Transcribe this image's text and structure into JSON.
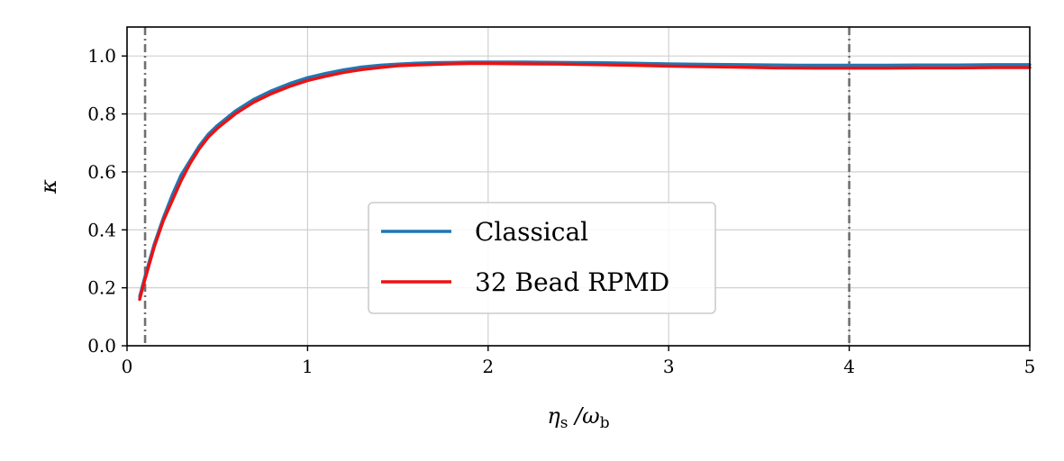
{
  "chart_data": {
    "type": "line",
    "xlabel": "η_s / ω_b",
    "xlabel_main": "η",
    "xlabel_sub1": "s",
    "xlabel_mid": " /ω",
    "xlabel_sub2": "b",
    "ylabel": "κ",
    "xlim": [
      0,
      5
    ],
    "ylim": [
      0,
      1.1
    ],
    "xticks": [
      0,
      1,
      2,
      3,
      4,
      5
    ],
    "xtick_labels": [
      "0",
      "1",
      "2",
      "3",
      "4",
      "5"
    ],
    "yticks": [
      0.0,
      0.2,
      0.4,
      0.6,
      0.8,
      1.0
    ],
    "ytick_labels": [
      "0.0",
      "0.2",
      "0.4",
      "0.6",
      "0.8",
      "1.0"
    ],
    "grid": true,
    "legend_position": "center",
    "vlines": [
      0.1,
      4.0
    ],
    "series": [
      {
        "name": "Classical",
        "color": "#1f77b4",
        "x": [
          0.07,
          0.1,
          0.15,
          0.2,
          0.25,
          0.3,
          0.35,
          0.4,
          0.45,
          0.5,
          0.6,
          0.7,
          0.8,
          0.9,
          1.0,
          1.1,
          1.2,
          1.3,
          1.4,
          1.5,
          1.6,
          1.7,
          1.8,
          1.9,
          2.0,
          2.2,
          2.4,
          2.6,
          2.8,
          3.0,
          3.2,
          3.4,
          3.6,
          3.8,
          4.0,
          4.2,
          4.4,
          4.6,
          4.8,
          5.0
        ],
        "y": [
          0.17,
          0.24,
          0.35,
          0.44,
          0.52,
          0.59,
          0.64,
          0.69,
          0.73,
          0.76,
          0.81,
          0.85,
          0.88,
          0.905,
          0.925,
          0.94,
          0.952,
          0.962,
          0.968,
          0.972,
          0.975,
          0.977,
          0.978,
          0.979,
          0.979,
          0.979,
          0.978,
          0.977,
          0.975,
          0.973,
          0.971,
          0.97,
          0.969,
          0.968,
          0.968,
          0.968,
          0.969,
          0.969,
          0.97,
          0.97
        ]
      },
      {
        "name": "32 Bead RPMD",
        "color": "#ee1111",
        "x": [
          0.07,
          0.1,
          0.15,
          0.2,
          0.25,
          0.3,
          0.35,
          0.4,
          0.45,
          0.5,
          0.6,
          0.7,
          0.8,
          0.9,
          1.0,
          1.1,
          1.2,
          1.3,
          1.4,
          1.5,
          1.6,
          1.7,
          1.8,
          1.9,
          2.0,
          2.2,
          2.4,
          2.6,
          2.8,
          3.0,
          3.2,
          3.4,
          3.6,
          3.8,
          4.0,
          4.2,
          4.4,
          4.6,
          4.8,
          5.0
        ],
        "y": [
          0.16,
          0.23,
          0.34,
          0.43,
          0.5,
          0.57,
          0.63,
          0.68,
          0.72,
          0.75,
          0.8,
          0.84,
          0.87,
          0.895,
          0.915,
          0.93,
          0.943,
          0.953,
          0.96,
          0.966,
          0.969,
          0.971,
          0.973,
          0.974,
          0.974,
          0.973,
          0.972,
          0.97,
          0.968,
          0.965,
          0.963,
          0.961,
          0.959,
          0.958,
          0.958,
          0.958,
          0.959,
          0.959,
          0.96,
          0.96
        ]
      }
    ]
  }
}
